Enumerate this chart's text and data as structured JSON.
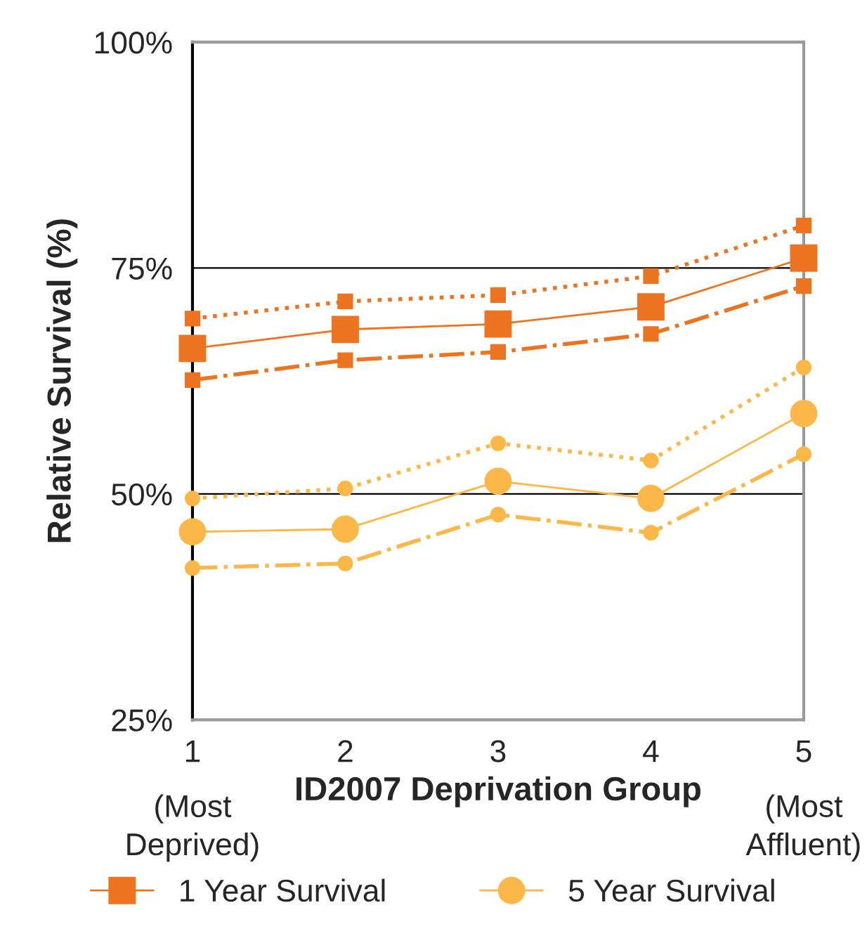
{
  "chart_data": {
    "type": "line",
    "xlabel": "ID2007 Deprivation Group",
    "ylabel": "Relative Survival (%)",
    "x": [
      1,
      2,
      3,
      4,
      5
    ],
    "series": [
      {
        "name": "1 Year Survival",
        "color": "#ec7420",
        "values": [
          66.1,
          68.2,
          68.8,
          70.7,
          76.1
        ],
        "marker": "square",
        "line_style": "solid"
      },
      {
        "color": "#ec7420",
        "values": [
          69.4,
          71.3,
          72.0,
          74.1,
          79.7
        ],
        "marker": "square",
        "line_style": "dotted"
      },
      {
        "color": "#ec7420",
        "values": [
          62.6,
          64.8,
          65.7,
          67.7,
          73.0
        ],
        "marker": "square",
        "line_style": "dashdot"
      },
      {
        "name": "5 Year Survival",
        "color": "#fbb848",
        "values": [
          45.8,
          46.1,
          51.4,
          49.5,
          58.9
        ],
        "marker": "circle",
        "line_style": "solid"
      },
      {
        "color": "#fbb848",
        "values": [
          49.5,
          50.6,
          55.6,
          53.7,
          64.0
        ],
        "marker": "circle",
        "line_style": "dotted"
      },
      {
        "color": "#fbb848",
        "values": [
          41.8,
          42.3,
          47.7,
          45.7,
          54.4
        ],
        "marker": "circle",
        "line_style": "dashdot"
      }
    ],
    "xlim": [
      1,
      5
    ],
    "xticks": [
      1,
      2,
      3,
      4,
      5
    ],
    "ylim": [
      25,
      100
    ],
    "yticks": [
      {
        "value": 25,
        "label": "25%"
      },
      {
        "value": 50,
        "label": "50%"
      },
      {
        "value": 75,
        "label": "75%"
      },
      {
        "value": 100,
        "label": "100%"
      }
    ],
    "grid": "y",
    "legend": "bottom",
    "annotations": [
      "(Most Deprived)",
      "(Most Affluent)"
    ]
  }
}
